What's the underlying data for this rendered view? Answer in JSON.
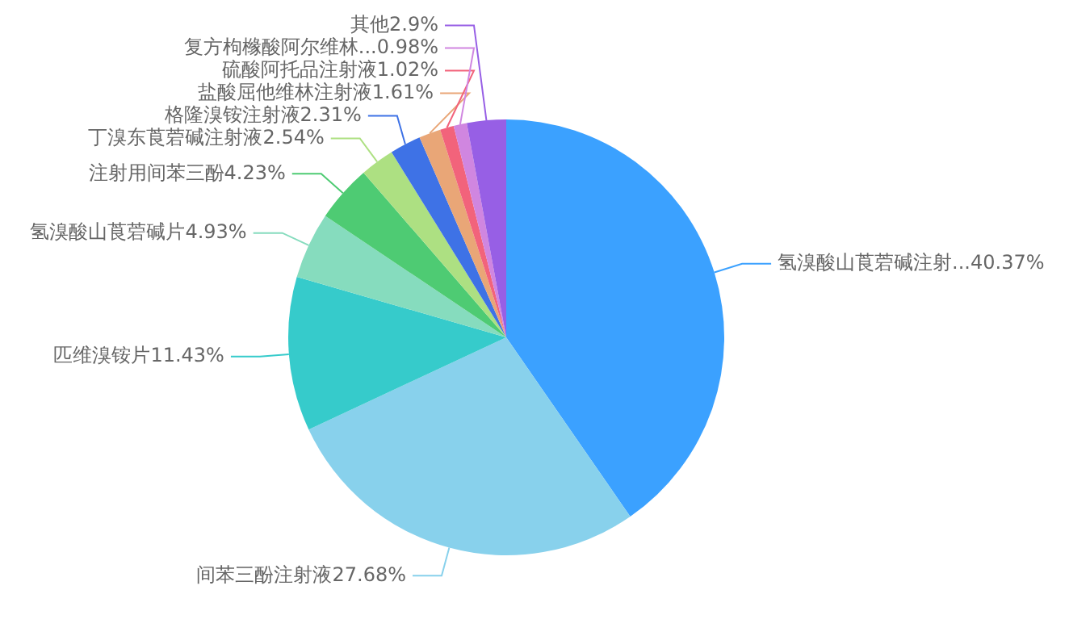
{
  "chart_data": {
    "type": "pie",
    "categories": [
      "氢溴酸山莨菪碱注射...",
      "间苯三酚注射液",
      "匹维溴铵片",
      "氢溴酸山莨菪碱片",
      "注射用间苯三酚",
      "丁溴东莨菪碱注射液",
      "格隆溴铵注射液",
      "盐酸屈他维林注射液",
      "硫酸阿托品注射液",
      "复方枸橼酸阿尔维林...",
      "其他"
    ],
    "values": [
      40.37,
      27.68,
      11.43,
      4.93,
      4.23,
      2.54,
      2.31,
      1.61,
      1.02,
      0.98,
      2.9
    ],
    "value_labels": [
      "40.37%",
      "27.68%",
      "11.43%",
      "4.93%",
      "4.23%",
      "2.54%",
      "2.31%",
      "1.61%",
      "1.02%",
      "0.98%",
      "2.9%"
    ],
    "colors": [
      "#3ba1ff",
      "#88d1ec",
      "#36cbcb",
      "#86dcbe",
      "#4ecb73",
      "#ade082",
      "#3e72e6",
      "#e9a677",
      "#f2637b",
      "#d086e0",
      "#975fe5"
    ],
    "legend": false
  }
}
